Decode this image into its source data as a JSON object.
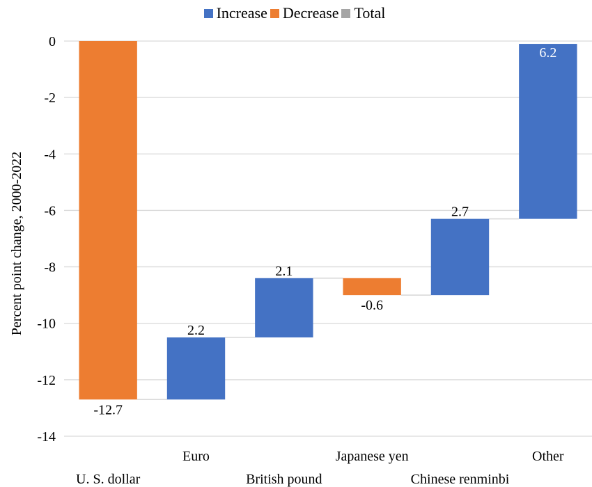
{
  "chart_data": {
    "type": "waterfall",
    "ylabel": "Percent point change, 2000-2022",
    "ylim": [
      -14,
      0
    ],
    "y_ticks": [
      0,
      -2,
      -4,
      -6,
      -8,
      -10,
      -12,
      -14
    ],
    "grid": true,
    "legend_position": "top",
    "legend": [
      {
        "label": "Increase",
        "color": "#4472C4"
      },
      {
        "label": "Decrease",
        "color": "#ED7D31"
      },
      {
        "label": "Total",
        "color": "#A5A5A5"
      }
    ],
    "categories": [
      "U. S. dollar",
      "Euro",
      "British pound",
      "Japanese yen",
      "Chinese renminbi",
      "Other"
    ],
    "values": [
      -12.7,
      2.2,
      2.1,
      -0.6,
      2.7,
      6.2
    ],
    "value_labels": [
      "-12.7",
      "2.2",
      "2.1",
      "-0.6",
      "2.7",
      "6.2"
    ],
    "colors": {
      "increase": "#4472C4",
      "decrease": "#ED7D31",
      "total": "#A5A5A5",
      "grid": "#D9D9D9",
      "connector": "#D9D9D9"
    }
  }
}
